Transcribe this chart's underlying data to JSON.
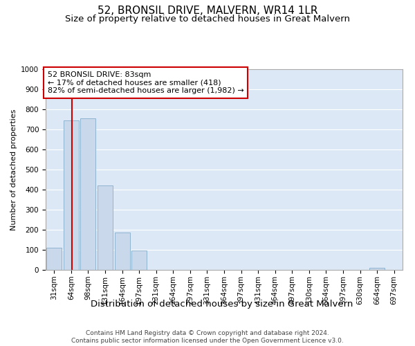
{
  "title": "52, BRONSIL DRIVE, MALVERN, WR14 1LR",
  "subtitle": "Size of property relative to detached houses in Great Malvern",
  "xlabel": "Distribution of detached houses by size in Great Malvern",
  "ylabel": "Number of detached properties",
  "footer_line1": "Contains HM Land Registry data © Crown copyright and database right 2024.",
  "footer_line2": "Contains public sector information licensed under the Open Government Licence v3.0.",
  "annotation_title": "52 BRONSIL DRIVE: 83sqm",
  "annotation_line1": "← 17% of detached houses are smaller (418)",
  "annotation_line2": "82% of semi-detached houses are larger (1,982) →",
  "bar_labels": [
    "31sqm",
    "64sqm",
    "98sqm",
    "131sqm",
    "164sqm",
    "197sqm",
    "231sqm",
    "264sqm",
    "297sqm",
    "331sqm",
    "364sqm",
    "397sqm",
    "431sqm",
    "464sqm",
    "497sqm",
    "530sqm",
    "564sqm",
    "597sqm",
    "630sqm",
    "664sqm",
    "697sqm"
  ],
  "bar_values": [
    110,
    745,
    755,
    420,
    185,
    95,
    0,
    0,
    0,
    0,
    0,
    0,
    0,
    0,
    0,
    0,
    0,
    0,
    0,
    10,
    0
  ],
  "bar_color": "#c9d9eb",
  "bar_edgecolor": "#8fb4d0",
  "vline_color": "#cc0000",
  "vline_x": 1.05,
  "ylim": [
    0,
    1000
  ],
  "yticks": [
    0,
    100,
    200,
    300,
    400,
    500,
    600,
    700,
    800,
    900,
    1000
  ],
  "background_color": "#ffffff",
  "plot_bg_color": "#dce8f5",
  "grid_color": "#ffffff",
  "annotation_box_color": "#ffffff",
  "annotation_box_edge": "#cc0000",
  "title_fontsize": 11,
  "subtitle_fontsize": 9.5,
  "xlabel_fontsize": 9.5,
  "ylabel_fontsize": 8,
  "tick_fontsize": 7.5,
  "annotation_fontsize": 8
}
